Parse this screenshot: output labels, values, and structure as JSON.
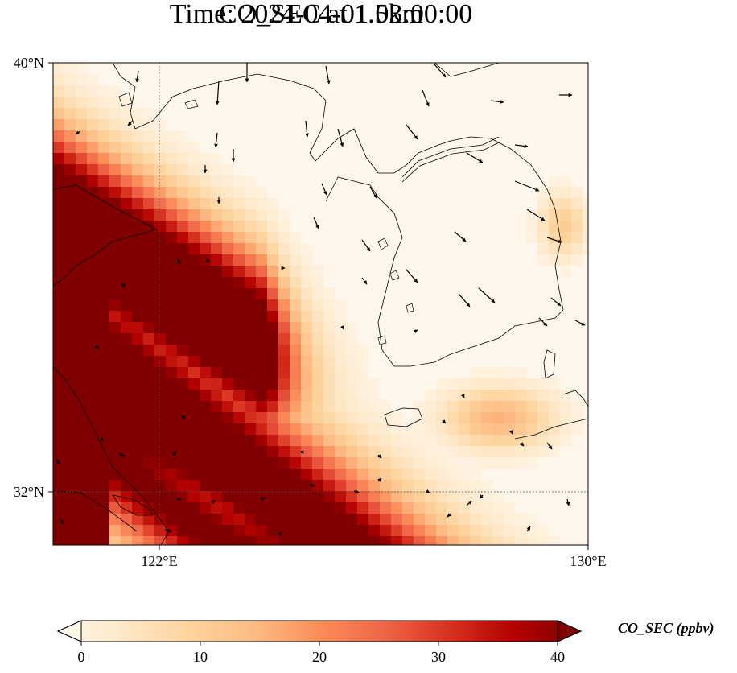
{
  "title": {
    "line1": "CO_SEC at 1.5km",
    "line2": "Time: 2024-04-01 03:00:00"
  },
  "axes": {
    "lat_labels": [
      "40°N",
      "32°N"
    ],
    "lon_labels": [
      "122°E",
      "130°E"
    ],
    "lat_range": [
      31,
      40
    ],
    "lon_range": [
      120,
      130
    ]
  },
  "colorbar": {
    "label": "CO_SEC (ppbv)",
    "ticks": [
      "0",
      "10",
      "20",
      "30",
      "40"
    ],
    "range": [
      0,
      40
    ],
    "extend": "both",
    "colormap": "OrRd",
    "colors": [
      "#fff7ec",
      "#fee8c8",
      "#fdd49e",
      "#fdbb84",
      "#fc8d59",
      "#ef6548",
      "#d7301f",
      "#b30000",
      "#7f0000"
    ]
  },
  "map": {
    "field_description": "heavy CO plume band extending from the Chinese coast southeastward",
    "gridline_style": "dotted",
    "features": [
      "coastlines",
      "wind-vectors"
    ]
  }
}
